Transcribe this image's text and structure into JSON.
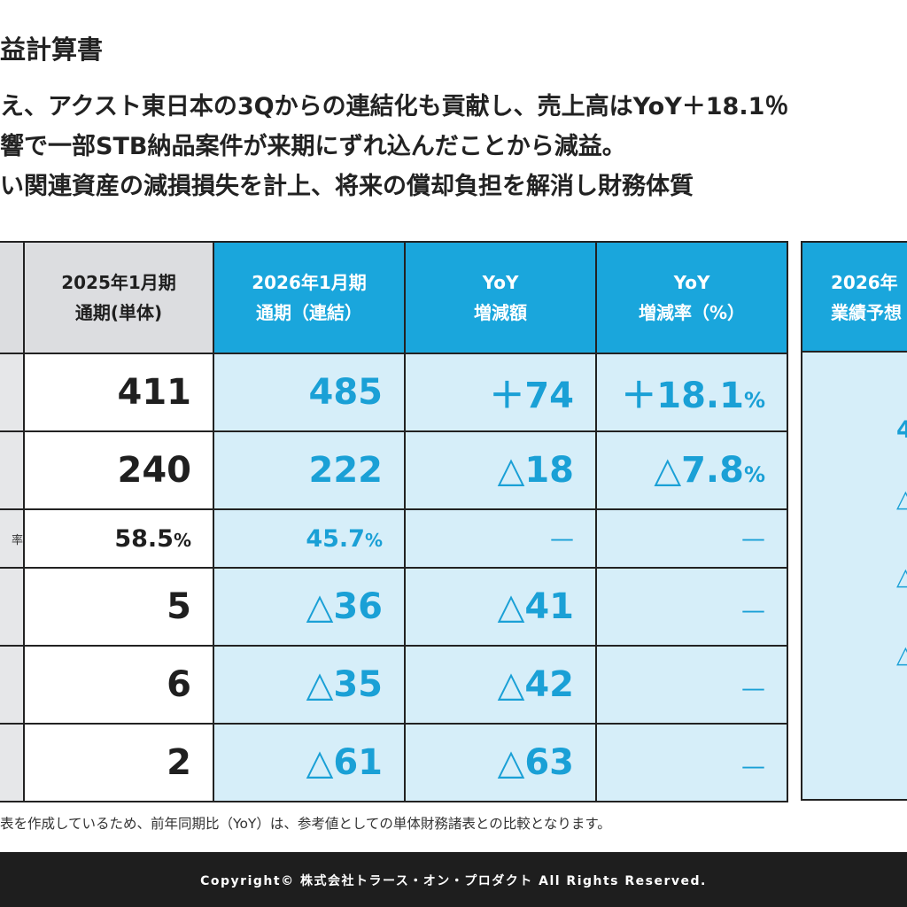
{
  "title": "益計算書",
  "bullets": [
    "え、アクスト東日本の3Qからの連結化も貢献し、売上高はYoY＋18.1％",
    "響で一部STB納品案件が来期にずれ込んだことから減益。",
    "い関連資産の減損損失を計上、将来の償却負担を解消し財務体質"
  ],
  "table": {
    "headers": {
      "prev_line1": "2025年1月期",
      "prev_line2": "通期(単体)",
      "cur_line1": "2026年1月期",
      "cur_line2": "通期（連結）",
      "amt_line1": "YoY",
      "amt_line2": "増減額",
      "rate_line1": "YoY",
      "rate_line2": "増減率（%）",
      "fc_line1": "2026年",
      "fc_line2": "業績予想"
    },
    "rows": [
      {
        "label": "",
        "prev": "411",
        "cur": "485",
        "amt": "＋74",
        "rate_num": "＋18.1",
        "rate_pct": "%"
      },
      {
        "label": "",
        "prev": "240",
        "cur": "222",
        "amt": "△18",
        "rate_num": "△7.8",
        "rate_pct": "%"
      },
      {
        "label": "率",
        "prev_num": "58.5",
        "prev_pct": "%",
        "cur_num": "45.7",
        "cur_pct": "%",
        "amt": "—",
        "rate": "—"
      },
      {
        "label": "",
        "prev": "5",
        "cur": "△36",
        "amt": "△41",
        "rate": "—"
      },
      {
        "label": "",
        "prev": "6",
        "cur": "△35",
        "amt": "△42",
        "rate": "—"
      },
      {
        "label": "",
        "prev": "2",
        "cur": "△61",
        "amt": "△63",
        "rate": "—"
      }
    ],
    "forecast": [
      "4",
      "△",
      "△",
      "△"
    ]
  },
  "footnote": "表を作成しているため、前年同期比（YoY）は、参考値としての単体財務諸表との比較となります。",
  "copyright": "Copyright© 株式会社トラース・オン・プロダクト All Rights Reserved."
}
